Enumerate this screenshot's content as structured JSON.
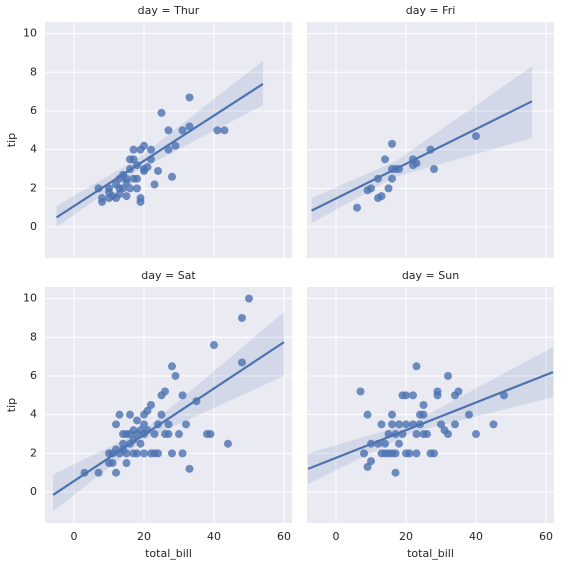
{
  "chart_data": [
    {
      "type": "scatter",
      "title": "day = Thur",
      "ylabel": "tip",
      "color": "#4c72b0",
      "grid": true,
      "xlim": [
        -8.3,
        62.3
      ],
      "ylim": [
        -1.6,
        10.6
      ],
      "xticks": [
        0,
        20,
        40,
        60
      ],
      "yticks": [
        0,
        2,
        4,
        6,
        8,
        10
      ],
      "x": [
        7,
        8,
        8,
        10,
        10,
        11,
        12,
        13,
        13,
        14,
        15,
        15,
        16,
        16,
        17,
        17,
        17,
        18,
        18,
        19,
        19,
        19,
        20,
        20,
        21,
        22,
        22,
        23,
        24,
        25,
        27,
        27,
        28,
        29,
        31,
        33,
        33,
        41,
        43,
        16,
        14,
        12,
        10,
        13,
        20,
        15,
        18
      ],
      "y": [
        2,
        1.5,
        1.3,
        1.8,
        2,
        1.6,
        2.2,
        1.7,
        2.5,
        2,
        2.3,
        2.5,
        2,
        3,
        3.5,
        2.5,
        4,
        3.2,
        2,
        4,
        1.3,
        1.5,
        4.2,
        2.9,
        3.1,
        3.5,
        4,
        2.2,
        2.9,
        5.9,
        4,
        5,
        2.6,
        4.2,
        5,
        6.7,
        5.2,
        5,
        5,
        3.5,
        2.7,
        1.5,
        1.5,
        2,
        3,
        1.6,
        2.5
      ],
      "fit": {
        "x": [
          -5,
          54
        ],
        "y": [
          0.5,
          7.4
        ]
      },
      "ci": {
        "x": [
          -5,
          18,
          54
        ],
        "lower": [
          0.0,
          2.9,
          6.3
        ],
        "upper": [
          1.1,
          3.5,
          8.6
        ]
      }
    },
    {
      "type": "scatter",
      "title": "day = Fri",
      "color": "#4c72b0",
      "grid": true,
      "xlim": [
        -8.3,
        62.3
      ],
      "ylim": [
        -1.6,
        10.6
      ],
      "xticks": [
        0,
        20,
        40,
        60
      ],
      "yticks": [
        0,
        2,
        4,
        6,
        8,
        10
      ],
      "x": [
        6,
        9,
        10,
        12,
        12,
        13,
        14,
        15,
        16,
        16,
        16,
        17,
        18,
        22,
        22,
        23,
        27,
        28,
        40
      ],
      "y": [
        1,
        1.9,
        2,
        2.5,
        1.5,
        1.6,
        3.5,
        2,
        3,
        4.3,
        2.5,
        3,
        3,
        3.2,
        3.5,
        3.3,
        4,
        3,
        4.7
      ],
      "fit": {
        "x": [
          -7,
          56
        ],
        "y": [
          0.85,
          6.5
        ]
      },
      "ci": {
        "x": [
          -7,
          17,
          56
        ],
        "lower": [
          0.2,
          2.6,
          4.6
        ],
        "upper": [
          1.5,
          3.4,
          8.3
        ]
      }
    },
    {
      "type": "scatter",
      "title": "day = Sat",
      "ylabel": "tip",
      "xlabel": "total_bill",
      "color": "#4c72b0",
      "grid": true,
      "xlim": [
        -8.3,
        62.3
      ],
      "ylim": [
        -1.6,
        10.6
      ],
      "xticks": [
        0,
        20,
        40,
        60
      ],
      "yticks": [
        0,
        2,
        4,
        6,
        8,
        10
      ],
      "x": [
        3,
        7,
        10,
        10,
        11,
        11,
        12,
        12,
        13,
        13,
        14,
        14,
        15,
        15,
        15,
        16,
        16,
        16,
        17,
        17,
        17,
        18,
        18,
        19,
        19,
        20,
        20,
        20,
        20,
        21,
        21,
        22,
        22,
        23,
        23,
        24,
        24,
        25,
        25,
        26,
        26,
        27,
        27,
        28,
        28,
        29,
        30,
        31,
        31,
        32,
        33,
        35,
        38,
        39,
        40,
        44,
        48,
        48,
        50,
        14,
        18,
        12
      ],
      "y": [
        1,
        1,
        1.5,
        2,
        2,
        1.5,
        1,
        3.5,
        2,
        4,
        2.2,
        2.5,
        3,
        1.5,
        2,
        2.5,
        3,
        4,
        2,
        3.2,
        2.7,
        3,
        2,
        2.5,
        3.2,
        2,
        3.5,
        4,
        3,
        4.2,
        3.2,
        2,
        4.5,
        3,
        2,
        2,
        3.5,
        4,
        5,
        5.2,
        3,
        3.5,
        3,
        6.5,
        2,
        6,
        3,
        5,
        2,
        3.5,
        1.2,
        4.7,
        3,
        3,
        7.6,
        2.5,
        9,
        6.7,
        10,
        3,
        3.7,
        2.2
      ],
      "fit": {
        "x": [
          -6,
          60
        ],
        "y": [
          -0.15,
          7.75
        ]
      },
      "ci": {
        "x": [
          -6,
          20,
          60
        ],
        "lower": [
          -1.0,
          2.7,
          6.0
        ],
        "upper": [
          0.9,
          3.2,
          9.3
        ]
      }
    },
    {
      "type": "scatter",
      "title": "day = Sun",
      "xlabel": "total_bill",
      "color": "#4c72b0",
      "grid": true,
      "xlim": [
        -8.3,
        62.3
      ],
      "ylim": [
        -1.6,
        10.6
      ],
      "xticks": [
        0,
        20,
        40,
        60
      ],
      "yticks": [
        0,
        2,
        4,
        6,
        8,
        10
      ],
      "x": [
        7,
        8,
        9,
        9,
        10,
        10,
        12,
        13,
        13,
        14,
        14,
        15,
        15,
        16,
        16,
        16,
        17,
        17,
        17,
        18,
        18,
        19,
        19,
        20,
        20,
        20,
        21,
        22,
        22,
        23,
        23,
        23,
        24,
        24,
        25,
        25,
        25,
        26,
        27,
        28,
        29,
        29,
        30,
        31,
        32,
        32,
        34,
        34,
        35,
        38,
        40,
        45,
        48
      ],
      "y": [
        5.2,
        2,
        1.3,
        4,
        2.5,
        1.6,
        2.5,
        2,
        3.5,
        2.5,
        2,
        3,
        2,
        3.5,
        2,
        4,
        2,
        3,
        1,
        2.5,
        3.5,
        3,
        5,
        2,
        3.5,
        5,
        2,
        3.5,
        5,
        2,
        3,
        6.5,
        4,
        3.5,
        4.5,
        4,
        3,
        3,
        2,
        2,
        5,
        5.2,
        3.5,
        3.2,
        6,
        3,
        5,
        3.5,
        5.2,
        4,
        3,
        3.5,
        5
      ],
      "fit": {
        "x": [
          -8,
          62
        ],
        "y": [
          1.2,
          6.2
        ]
      },
      "ci": {
        "x": [
          -8,
          22,
          62
        ],
        "lower": [
          0.4,
          3.1,
          4.9
        ],
        "upper": [
          2.0,
          3.6,
          7.5
        ]
      }
    }
  ]
}
